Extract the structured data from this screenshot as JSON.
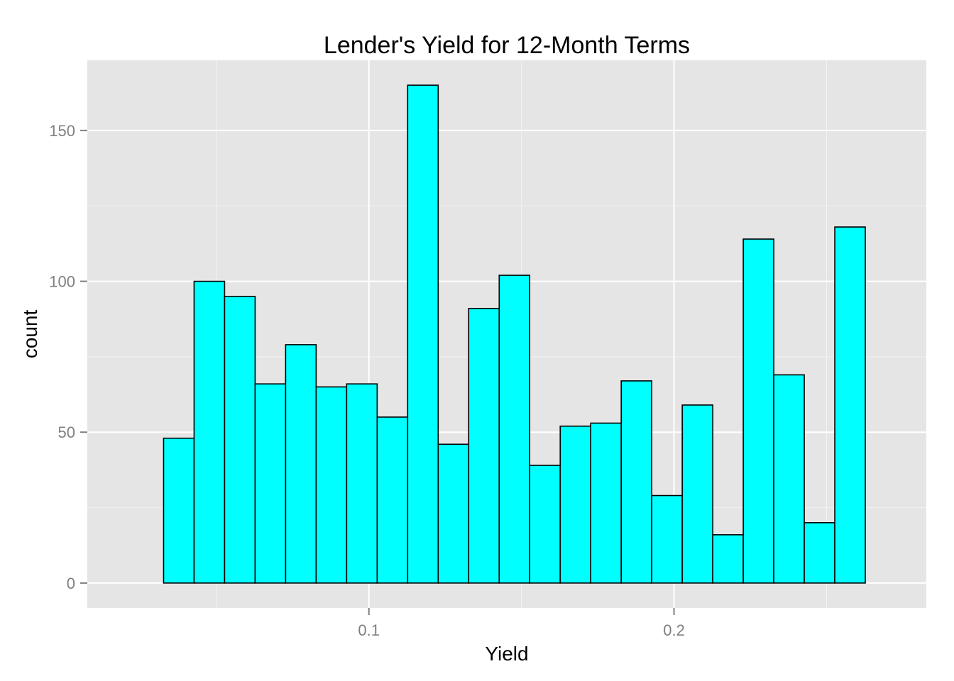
{
  "chart_data": {
    "type": "bar",
    "title": "Lender's Yield for 12-Month Terms",
    "xlabel": "Yield",
    "ylabel": "count",
    "xlim": [
      0.0077,
      0.2827
    ],
    "ylim": [
      -8.25,
      173.25
    ],
    "x_ticks": [
      {
        "value": 0.1,
        "label": "0.1"
      },
      {
        "value": 0.2,
        "label": "0.2"
      }
    ],
    "y_ticks": [
      {
        "value": 0,
        "label": "0"
      },
      {
        "value": 50,
        "label": "50"
      },
      {
        "value": 100,
        "label": "100"
      },
      {
        "value": 150,
        "label": "150"
      }
    ],
    "bin_width": 0.01,
    "bins": [
      {
        "x0": 0.0227,
        "x1": 0.0327,
        "count": 0
      },
      {
        "x0": 0.0327,
        "x1": 0.0427,
        "count": 48
      },
      {
        "x0": 0.0427,
        "x1": 0.0527,
        "count": 100
      },
      {
        "x0": 0.0527,
        "x1": 0.0627,
        "count": 95
      },
      {
        "x0": 0.0627,
        "x1": 0.0727,
        "count": 66
      },
      {
        "x0": 0.0727,
        "x1": 0.0827,
        "count": 79
      },
      {
        "x0": 0.0827,
        "x1": 0.0927,
        "count": 65
      },
      {
        "x0": 0.0927,
        "x1": 0.1027,
        "count": 66
      },
      {
        "x0": 0.1027,
        "x1": 0.1127,
        "count": 55
      },
      {
        "x0": 0.1127,
        "x1": 0.1227,
        "count": 165
      },
      {
        "x0": 0.1227,
        "x1": 0.1327,
        "count": 46
      },
      {
        "x0": 0.1327,
        "x1": 0.1427,
        "count": 91
      },
      {
        "x0": 0.1427,
        "x1": 0.1527,
        "count": 102
      },
      {
        "x0": 0.1527,
        "x1": 0.1627,
        "count": 39
      },
      {
        "x0": 0.1627,
        "x1": 0.1727,
        "count": 52
      },
      {
        "x0": 0.1727,
        "x1": 0.1827,
        "count": 53
      },
      {
        "x0": 0.1827,
        "x1": 0.1927,
        "count": 67
      },
      {
        "x0": 0.1927,
        "x1": 0.2027,
        "count": 29
      },
      {
        "x0": 0.2027,
        "x1": 0.2127,
        "count": 59
      },
      {
        "x0": 0.2127,
        "x1": 0.2227,
        "count": 16
      },
      {
        "x0": 0.2227,
        "x1": 0.2327,
        "count": 114
      },
      {
        "x0": 0.2327,
        "x1": 0.2427,
        "count": 69
      },
      {
        "x0": 0.2427,
        "x1": 0.2527,
        "count": 20
      },
      {
        "x0": 0.2527,
        "x1": 0.2627,
        "count": 118
      },
      {
        "x0": 0.2627,
        "x1": 0.2727,
        "count": 0
      }
    ],
    "grid": true,
    "colors": {
      "bar_fill": "#00ffff",
      "bar_outline": "#000000",
      "panel_background": "#e5e5e5",
      "grid_major": "#ffffff",
      "grid_minor": "#f2f2f2"
    }
  }
}
